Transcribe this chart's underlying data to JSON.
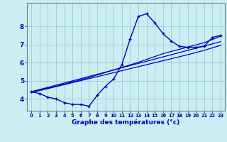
{
  "title": "",
  "xlabel": "Graphe des températures (°c)",
  "background_color": "#cceef2",
  "grid_color": "#99d4da",
  "line_color": "#0000bb",
  "x_values": [
    0,
    1,
    2,
    3,
    4,
    5,
    6,
    7,
    8,
    9,
    10,
    11,
    12,
    13,
    14,
    15,
    16,
    17,
    18,
    19,
    20,
    21,
    22,
    23
  ],
  "y_main": [
    4.4,
    4.3,
    4.1,
    4.0,
    3.8,
    3.7,
    3.7,
    3.6,
    4.2,
    4.7,
    5.1,
    5.9,
    7.3,
    8.55,
    8.7,
    8.2,
    7.6,
    7.2,
    6.9,
    6.85,
    6.85,
    6.9,
    7.4,
    7.5
  ],
  "y_linear1": [
    4.4,
    4.52,
    4.64,
    4.76,
    4.88,
    5.0,
    5.12,
    5.24,
    5.36,
    5.48,
    5.6,
    5.72,
    5.84,
    5.96,
    6.08,
    6.2,
    6.32,
    6.44,
    6.56,
    6.68,
    6.8,
    6.92,
    7.04,
    7.16
  ],
  "y_linear2": [
    4.35,
    4.46,
    4.57,
    4.68,
    4.79,
    4.9,
    5.01,
    5.12,
    5.23,
    5.34,
    5.45,
    5.56,
    5.67,
    5.78,
    5.89,
    6.0,
    6.11,
    6.22,
    6.33,
    6.44,
    6.56,
    6.68,
    6.82,
    6.96
  ],
  "y_linear3": [
    4.4,
    4.5,
    4.6,
    4.7,
    4.82,
    4.94,
    5.06,
    5.18,
    5.32,
    5.46,
    5.6,
    5.74,
    5.88,
    6.02,
    6.18,
    6.34,
    6.5,
    6.62,
    6.74,
    6.86,
    6.98,
    7.1,
    7.28,
    7.46
  ],
  "ylim": [
    3.35,
    9.3
  ],
  "yticks": [
    4,
    5,
    6,
    7,
    8
  ],
  "xlim": [
    -0.5,
    23.5
  ],
  "xtick_labels": [
    "0",
    "1",
    "2",
    "3",
    "4",
    "5",
    "6",
    "7",
    "8",
    "9",
    "10",
    "11",
    "12",
    "13",
    "14",
    "15",
    "16",
    "17",
    "18",
    "19",
    "20",
    "21",
    "22",
    "23"
  ]
}
